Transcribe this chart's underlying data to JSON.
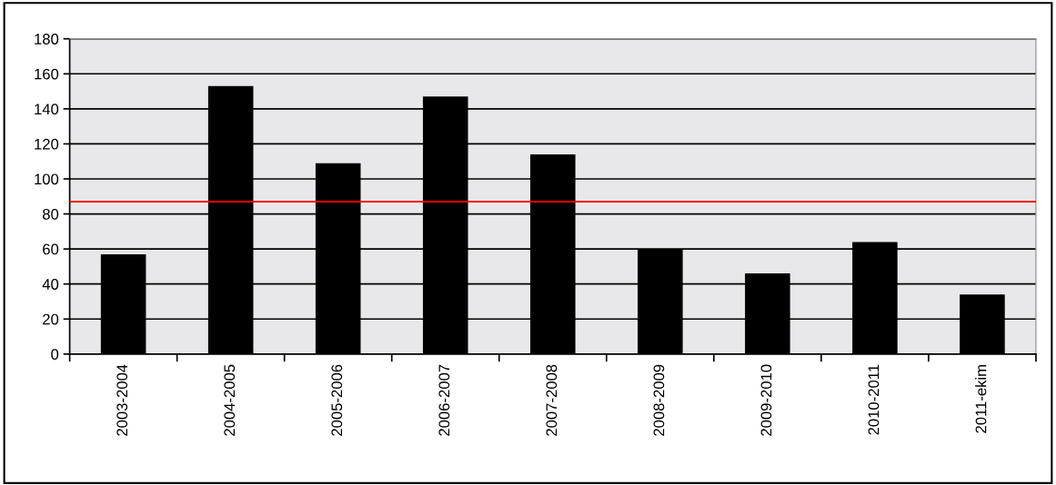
{
  "chart_data": {
    "type": "bar",
    "categories": [
      "2003-2004",
      "2004-2005",
      "2005-2006",
      "2006-2007",
      "2007-2008",
      "2008-2009",
      "2009-2010",
      "2010-2011",
      "2011-ekim"
    ],
    "values": [
      57,
      153,
      109,
      147,
      114,
      60,
      46,
      64,
      34
    ],
    "color": "#000000",
    "ylim": [
      0,
      180
    ],
    "yticks": [
      0,
      20,
      40,
      60,
      80,
      100,
      120,
      140,
      160,
      180
    ],
    "grid": "y",
    "ref_lines": [
      {
        "axis": "y",
        "value": 87,
        "color": "#ff0000"
      }
    ]
  }
}
